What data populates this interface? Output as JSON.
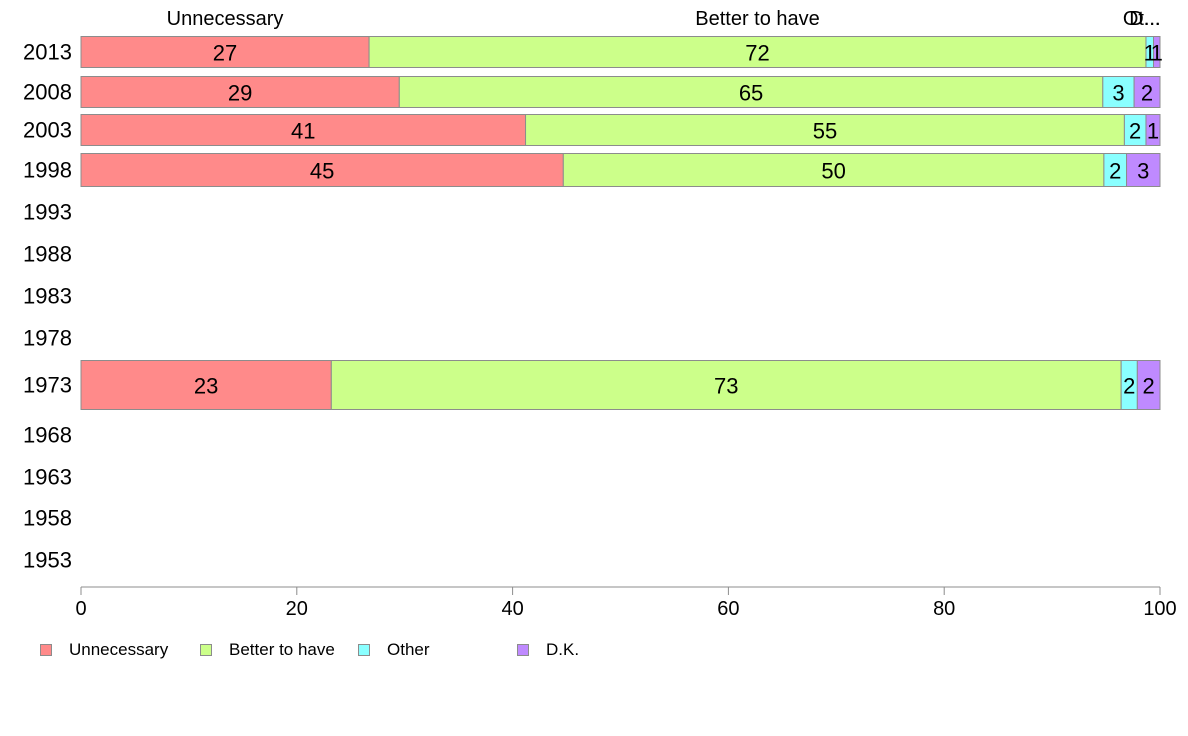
{
  "chart_data": {
    "type": "bar",
    "orientation": "horizontal",
    "stacked": true,
    "categories": [
      "2013",
      "2008",
      "2003",
      "1998",
      "1993",
      "1988",
      "1983",
      "1978",
      "1973",
      "1968",
      "1963",
      "1958",
      "1953"
    ],
    "series": [
      {
        "name": "Unnecessary",
        "color": "#ff8a8a",
        "values": [
          26.7,
          29.5,
          41.2,
          44.7,
          null,
          null,
          null,
          null,
          23.2,
          null,
          null,
          null,
          null
        ],
        "labels": [
          "27",
          "29",
          "41",
          "45",
          "",
          "",
          "",
          "",
          "23",
          "",
          "",
          "",
          ""
        ]
      },
      {
        "name": "Better to have",
        "color": "#ccff8a",
        "values": [
          72.0,
          65.2,
          55.5,
          50.1,
          null,
          null,
          null,
          null,
          73.2,
          null,
          null,
          null,
          null
        ],
        "labels": [
          "72",
          "65",
          "55",
          "50",
          "",
          "",
          "",
          "",
          "73",
          "",
          "",
          "",
          ""
        ]
      },
      {
        "name": "Other",
        "color": "#8affff",
        "values": [
          0.7,
          2.9,
          2.0,
          2.1,
          null,
          null,
          null,
          null,
          1.5,
          null,
          null,
          null,
          null
        ],
        "labels": [
          "1",
          "3",
          "2",
          "2",
          "",
          "",
          "",
          "",
          "2",
          "",
          "",
          "",
          ""
        ]
      },
      {
        "name": "D.K.",
        "color": "#bf8aff",
        "values": [
          0.6,
          2.4,
          1.3,
          3.1,
          null,
          null,
          null,
          null,
          2.1,
          null,
          null,
          null,
          null
        ],
        "labels": [
          "1",
          "2",
          "1",
          "3",
          "",
          "",
          "",
          "",
          "2",
          "",
          "",
          "",
          ""
        ]
      }
    ],
    "top_labels": [
      "Unnecessary",
      "Better to have",
      "Ot...",
      "D..."
    ],
    "xlim": [
      0,
      100
    ],
    "xticks": [
      "0",
      "20",
      "40",
      "60",
      "80",
      "100"
    ],
    "xlabel": "",
    "ylabel": "",
    "grid": false,
    "legend_position": "bottom-left"
  },
  "legend": {
    "items": [
      {
        "label": "Unnecessary",
        "color": "#ff8a8a"
      },
      {
        "label": "Better to have",
        "color": "#ccff8a"
      },
      {
        "label": "Other",
        "color": "#8affff"
      },
      {
        "label": "D.K.",
        "color": "#bf8aff"
      }
    ]
  }
}
